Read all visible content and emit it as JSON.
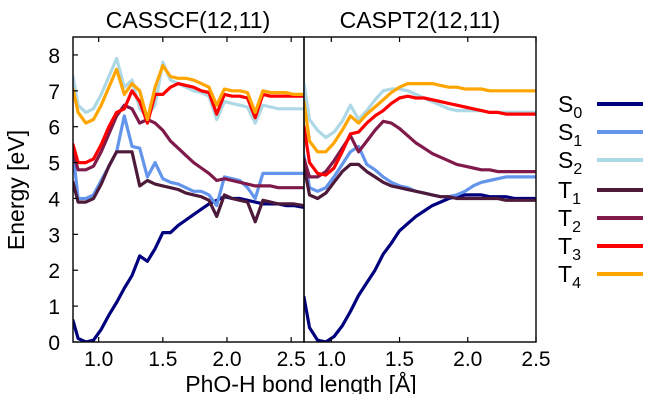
{
  "figure": {
    "ylabel": "Energy [eV]",
    "xlabel": "PhO-H bond length [Å]"
  },
  "legend": [
    {
      "base": "S",
      "sub": "0",
      "color": "#00007f"
    },
    {
      "base": "S",
      "sub": "1",
      "color": "#6495ed"
    },
    {
      "base": "S",
      "sub": "2",
      "color": "#add8e6"
    },
    {
      "base": "T",
      "sub": "1",
      "color": "#4d1a3a"
    },
    {
      "base": "T",
      "sub": "2",
      "color": "#7f1a4a"
    },
    {
      "base": "T",
      "sub": "3",
      "color": "#ff0000"
    },
    {
      "base": "T",
      "sub": "4",
      "color": "#ffa500"
    }
  ],
  "chart_data": [
    {
      "type": "line",
      "title": "CASSCF(12,11)",
      "xlim": [
        0.8,
        2.6
      ],
      "ylim": [
        0,
        8.5
      ],
      "xticks": [
        "1.0",
        "1.5",
        "2.0",
        "2.5"
      ],
      "yticks": [
        "0",
        "1",
        "2",
        "3",
        "4",
        "5",
        "6",
        "7",
        "8"
      ],
      "x": [
        0.8,
        0.84,
        0.9,
        0.96,
        1.02,
        1.08,
        1.14,
        1.2,
        1.26,
        1.32,
        1.38,
        1.44,
        1.5,
        1.56,
        1.62,
        1.68,
        1.74,
        1.8,
        1.86,
        1.92,
        1.98,
        2.04,
        2.1,
        2.16,
        2.22,
        2.28,
        2.34,
        2.4,
        2.46,
        2.52,
        2.6
      ],
      "series": [
        {
          "name": "S0",
          "color": "#00007f",
          "values": [
            0.6,
            0.1,
            0.0,
            0.05,
            0.35,
            0.75,
            1.1,
            1.5,
            1.85,
            2.4,
            2.25,
            2.6,
            3.05,
            3.05,
            3.25,
            3.4,
            3.55,
            3.7,
            3.85,
            3.95,
            4.05,
            4.0,
            4.0,
            3.95,
            3.9,
            3.85,
            3.85,
            3.85,
            3.8,
            3.8,
            3.75
          ]
        },
        {
          "name": "S1",
          "color": "#6495ed",
          "values": [
            5.3,
            4.0,
            4.0,
            4.1,
            4.5,
            4.9,
            5.3,
            6.3,
            5.45,
            5.4,
            4.6,
            5.0,
            4.55,
            4.45,
            4.4,
            4.3,
            4.2,
            4.2,
            4.1,
            3.8,
            4.6,
            4.55,
            4.5,
            4.3,
            4.0,
            4.7,
            4.7,
            4.7,
            4.7,
            4.7,
            4.7
          ]
        },
        {
          "name": "S2",
          "color": "#add8e6",
          "values": [
            7.4,
            6.6,
            6.4,
            6.5,
            6.9,
            7.4,
            7.9,
            7.1,
            7.3,
            6.5,
            6.3,
            6.6,
            7.8,
            7.3,
            7.2,
            7.1,
            7.0,
            6.95,
            6.85,
            6.2,
            6.7,
            6.65,
            6.6,
            6.55,
            6.1,
            6.6,
            6.55,
            6.5,
            6.5,
            6.5,
            6.5
          ]
        },
        {
          "name": "T1",
          "color": "#4d1a3a",
          "values": [
            4.45,
            3.9,
            3.9,
            4.0,
            4.4,
            4.9,
            5.3,
            5.3,
            5.3,
            4.35,
            4.5,
            4.4,
            4.35,
            4.3,
            4.25,
            4.15,
            4.1,
            4.05,
            3.95,
            3.5,
            4.1,
            4.0,
            3.95,
            3.9,
            3.35,
            3.95,
            3.9,
            3.85,
            3.85,
            3.85,
            3.8
          ]
        },
        {
          "name": "T2",
          "color": "#7f1a4a",
          "values": [
            5.3,
            4.8,
            4.8,
            4.9,
            5.3,
            5.8,
            6.3,
            6.6,
            6.5,
            6.1,
            6.2,
            6.1,
            5.9,
            5.6,
            5.4,
            5.2,
            5.0,
            4.85,
            4.7,
            4.5,
            4.55,
            4.5,
            4.45,
            4.4,
            4.35,
            4.35,
            4.35,
            4.3,
            4.3,
            4.3,
            4.3
          ]
        },
        {
          "name": "T3",
          "color": "#ff0000",
          "values": [
            5.5,
            5.0,
            5.0,
            5.1,
            5.5,
            6.0,
            6.4,
            6.5,
            7.0,
            6.7,
            6.1,
            6.9,
            6.9,
            7.1,
            7.2,
            7.15,
            7.1,
            7.0,
            6.95,
            6.35,
            6.9,
            6.85,
            6.85,
            6.8,
            6.25,
            6.9,
            6.85,
            6.85,
            6.85,
            6.85,
            6.85
          ]
        },
        {
          "name": "T4",
          "color": "#ffa500",
          "values": [
            7.05,
            6.4,
            6.1,
            6.2,
            6.6,
            7.1,
            7.6,
            6.9,
            7.2,
            7.0,
            6.2,
            7.1,
            7.7,
            7.4,
            7.35,
            7.35,
            7.3,
            7.2,
            7.1,
            6.6,
            7.05,
            7.0,
            7.0,
            6.95,
            6.4,
            7.0,
            6.95,
            6.95,
            6.95,
            6.9,
            6.9
          ]
        }
      ]
    },
    {
      "type": "line",
      "title": "CASPT2(12,11)",
      "xlim": [
        0.8,
        2.5
      ],
      "ylim": [
        0,
        8.5
      ],
      "xticks": [
        "1.0",
        "1.5",
        "2.0",
        "2.5"
      ],
      "x": [
        0.8,
        0.84,
        0.9,
        0.96,
        1.02,
        1.08,
        1.14,
        1.2,
        1.26,
        1.32,
        1.38,
        1.44,
        1.5,
        1.56,
        1.62,
        1.68,
        1.74,
        1.8,
        1.86,
        1.92,
        1.98,
        2.04,
        2.1,
        2.16,
        2.22,
        2.28,
        2.34,
        2.4,
        2.46,
        2.5
      ],
      "series": [
        {
          "name": "S0",
          "color": "#00007f",
          "values": [
            1.25,
            0.4,
            0.05,
            0.0,
            0.15,
            0.45,
            0.85,
            1.3,
            1.65,
            2.0,
            2.45,
            2.75,
            3.1,
            3.3,
            3.5,
            3.65,
            3.8,
            3.9,
            4.0,
            4.05,
            4.1,
            4.1,
            4.1,
            4.05,
            4.05,
            4.05,
            4.0,
            4.0,
            4.0,
            4.0
          ]
        },
        {
          "name": "S1",
          "color": "#6495ed",
          "values": [
            5.2,
            4.3,
            4.2,
            4.3,
            4.6,
            4.95,
            5.3,
            5.45,
            4.95,
            4.8,
            4.6,
            4.45,
            4.35,
            4.3,
            4.2,
            4.15,
            4.1,
            4.05,
            4.05,
            4.1,
            4.2,
            4.35,
            4.45,
            4.5,
            4.55,
            4.6,
            4.6,
            4.6,
            4.6,
            4.6
          ]
        },
        {
          "name": "S2",
          "color": "#add8e6",
          "values": [
            7.2,
            6.2,
            5.9,
            5.7,
            5.85,
            6.15,
            6.6,
            6.2,
            6.45,
            6.75,
            7.0,
            7.05,
            7.05,
            7.0,
            6.9,
            6.8,
            6.7,
            6.6,
            6.5,
            6.45,
            6.45,
            6.45,
            6.45,
            6.4,
            6.4,
            6.4,
            6.4,
            6.4,
            6.4,
            6.4
          ]
        },
        {
          "name": "T1",
          "color": "#4d1a3a",
          "values": [
            4.9,
            4.1,
            4.0,
            4.15,
            4.45,
            4.75,
            4.95,
            4.95,
            4.75,
            4.6,
            4.45,
            4.35,
            4.3,
            4.25,
            4.2,
            4.15,
            4.1,
            4.05,
            4.05,
            4.0,
            4.0,
            4.0,
            4.0,
            4.0,
            4.0,
            3.95,
            3.95,
            3.95,
            3.95,
            3.95
          ]
        },
        {
          "name": "T2",
          "color": "#7f1a4a",
          "values": [
            5.1,
            4.6,
            4.6,
            4.75,
            5.05,
            5.4,
            5.75,
            5.3,
            5.6,
            5.9,
            6.15,
            6.1,
            5.95,
            5.75,
            5.55,
            5.4,
            5.25,
            5.15,
            5.05,
            4.95,
            4.9,
            4.85,
            4.8,
            4.8,
            4.75,
            4.75,
            4.75,
            4.75,
            4.75,
            4.75
          ]
        },
        {
          "name": "T3",
          "color": "#ff0000",
          "values": [
            6.0,
            5.0,
            4.7,
            4.65,
            4.85,
            5.3,
            5.8,
            5.85,
            6.1,
            6.3,
            6.45,
            6.65,
            6.8,
            6.85,
            6.8,
            6.8,
            6.75,
            6.7,
            6.65,
            6.6,
            6.55,
            6.5,
            6.45,
            6.4,
            6.4,
            6.35,
            6.35,
            6.35,
            6.35,
            6.35
          ]
        },
        {
          "name": "T4",
          "color": "#ffa500",
          "values": [
            6.7,
            5.6,
            5.3,
            5.3,
            5.55,
            5.9,
            6.3,
            6.1,
            6.35,
            6.55,
            6.75,
            6.95,
            7.1,
            7.2,
            7.2,
            7.2,
            7.2,
            7.15,
            7.1,
            7.1,
            7.05,
            7.05,
            7.05,
            7.0,
            7.0,
            7.0,
            7.0,
            7.0,
            7.0,
            7.0
          ]
        }
      ]
    }
  ]
}
